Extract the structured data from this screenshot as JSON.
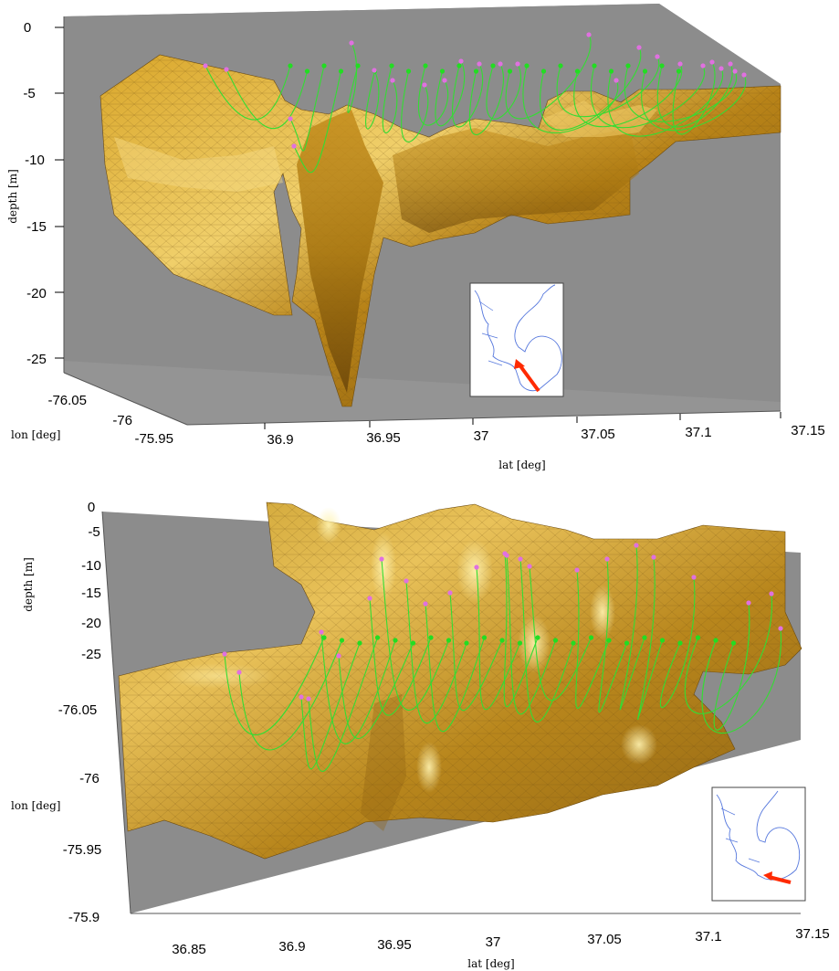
{
  "chart_data": [
    {
      "type": "3d-surface-with-trajectories",
      "zlabel": "depth [m]",
      "xlabel": "lat [deg]",
      "ylabel": "lon [deg]",
      "z_ticks": [
        "0",
        "-5",
        "-10",
        "-15",
        "-20",
        "-25"
      ],
      "x_ticks": [
        "36.9",
        "36.95",
        "37",
        "37.05",
        "37.1",
        "37.15"
      ],
      "y_ticks": [
        "-76.05",
        "-76",
        "-75.95"
      ],
      "zlim": [
        -27,
        0
      ],
      "xlim": [
        36.85,
        37.15
      ],
      "ylim": [
        -76.07,
        -75.93
      ],
      "surface": {
        "name": "bathymetry",
        "color": "#c8921a"
      },
      "trajectories": {
        "color": "#33dd33",
        "start_marker_color": "#22dd22",
        "end_marker_color": "#e070e0",
        "count": 24
      },
      "inset": {
        "coast_color": "#5577dd",
        "arrow_color": "#ff2a00"
      }
    },
    {
      "type": "3d-surface-with-trajectories",
      "zlabel": "depth [m]",
      "xlabel": "lat [deg]",
      "ylabel": "lon [deg]",
      "z_ticks": [
        "0",
        "-5",
        "-10",
        "-15",
        "-20",
        "-25"
      ],
      "x_ticks": [
        "36.85",
        "36.9",
        "36.95",
        "37",
        "37.05",
        "37.1",
        "37.15"
      ],
      "y_ticks": [
        "-76.05",
        "-76",
        "-75.95",
        "-75.9"
      ],
      "zlim": [
        -27,
        0
      ],
      "xlim": [
        36.82,
        37.16
      ],
      "ylim": [
        -76.08,
        -75.9
      ],
      "surface": {
        "name": "bathymetry",
        "color": "#c8921a"
      },
      "trajectories": {
        "color": "#33dd33",
        "start_marker_color": "#22dd22",
        "end_marker_color": "#e070e0",
        "count": 24
      },
      "inset": {
        "coast_color": "#5577dd",
        "arrow_color": "#ff2a00"
      }
    }
  ]
}
